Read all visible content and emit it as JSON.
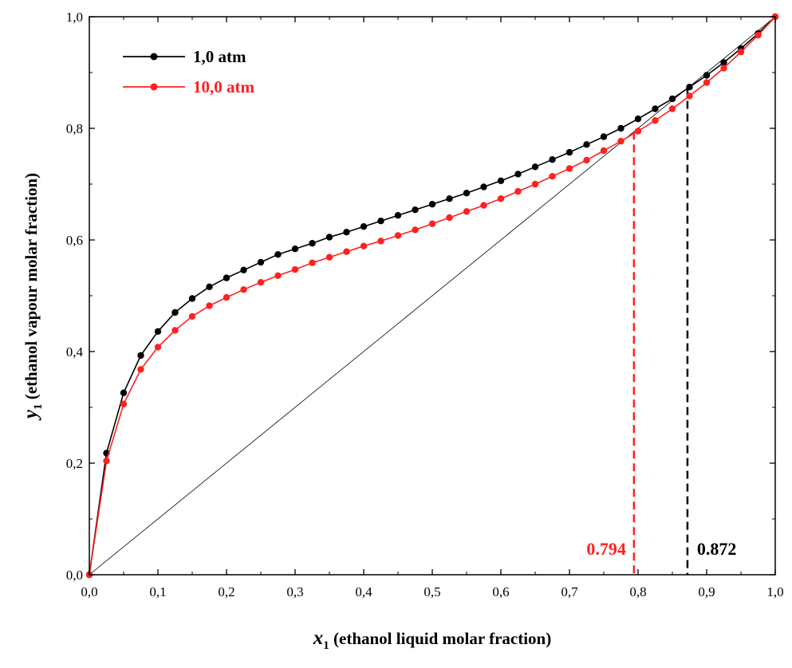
{
  "chart_data": {
    "type": "line",
    "title": "",
    "xlabel": {
      "symbol": "x",
      "subscript": "1",
      "text": " (ethanol liquid molar fraction)"
    },
    "ylabel": {
      "symbol": "y",
      "subscript": "1",
      "text": " (ethanol vapour molar fraction)"
    },
    "xlim": [
      0,
      1
    ],
    "ylim": [
      0,
      1
    ],
    "xticks": [
      "0,0",
      "0,1",
      "0,2",
      "0,3",
      "0,4",
      "0,5",
      "0,6",
      "0,7",
      "0,8",
      "0,9",
      "1,0"
    ],
    "yticks": [
      "0,0",
      "0,2",
      "0,4",
      "0,6",
      "0,8",
      "1,0"
    ],
    "x": [
      0,
      0.025,
      0.05,
      0.075,
      0.1,
      0.125,
      0.15,
      0.175,
      0.2,
      0.225,
      0.25,
      0.275,
      0.3,
      0.325,
      0.35,
      0.375,
      0.4,
      0.425,
      0.45,
      0.475,
      0.5,
      0.525,
      0.55,
      0.575,
      0.6,
      0.625,
      0.65,
      0.675,
      0.7,
      0.725,
      0.75,
      0.775,
      0.8,
      0.825,
      0.85,
      0.875,
      0.9,
      0.925,
      0.95,
      0.975,
      1.0
    ],
    "series": [
      {
        "name": "1,0 atm",
        "color": "#000000",
        "values": [
          0,
          0.218,
          0.326,
          0.393,
          0.436,
          0.47,
          0.495,
          0.516,
          0.532,
          0.546,
          0.56,
          0.574,
          0.584,
          0.594,
          0.605,
          0.614,
          0.624,
          0.634,
          0.644,
          0.654,
          0.664,
          0.674,
          0.684,
          0.695,
          0.706,
          0.718,
          0.731,
          0.744,
          0.757,
          0.771,
          0.785,
          0.8,
          0.817,
          0.835,
          0.853,
          0.874,
          0.895,
          0.918,
          0.943,
          0.97,
          1.0
        ]
      },
      {
        "name": "10,0 atm",
        "color": "#ff2020",
        "values": [
          0,
          0.204,
          0.306,
          0.368,
          0.408,
          0.438,
          0.463,
          0.482,
          0.497,
          0.511,
          0.524,
          0.536,
          0.547,
          0.559,
          0.569,
          0.579,
          0.589,
          0.598,
          0.608,
          0.618,
          0.629,
          0.64,
          0.651,
          0.662,
          0.674,
          0.687,
          0.7,
          0.714,
          0.728,
          0.743,
          0.76,
          0.777,
          0.795,
          0.814,
          0.835,
          0.858,
          0.882,
          0.908,
          0.937,
          0.967,
          1.0
        ]
      }
    ],
    "reference_line": {
      "name": "y = x",
      "from": [
        0,
        0
      ],
      "to": [
        1,
        1
      ]
    },
    "annotations": [
      {
        "text": "0.794",
        "x": 0.794,
        "y_top": 0.794,
        "color": "#ff2020"
      },
      {
        "text": "0.872",
        "x": 0.872,
        "y_top": 0.872,
        "color": "#000000"
      }
    ],
    "legend": {
      "placement": "top-left"
    },
    "grid": false
  }
}
